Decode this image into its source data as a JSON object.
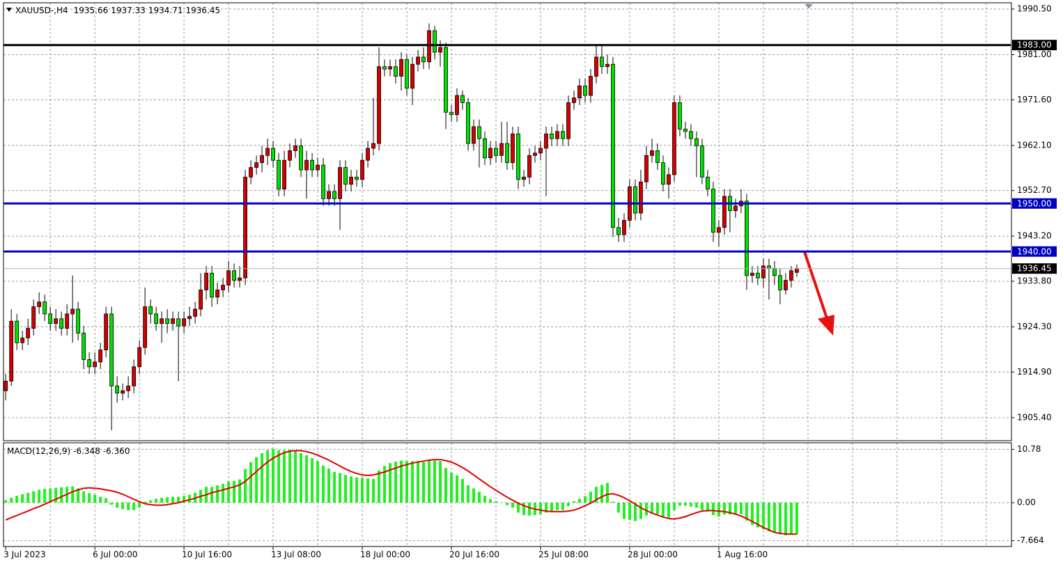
{
  "chart_data": {
    "type": "candlestick",
    "title": "XAUUSD-,H4",
    "open": [
      1911.0,
      1913.0,
      1925.5,
      1921.0,
      1922.0,
      1924.0,
      1928.5,
      1929.5,
      1927.0,
      1925.0,
      1926.0,
      1924.0,
      1927.0,
      1928.0,
      1923.0,
      1917.5,
      1916.0,
      1917.0,
      1919.5,
      1927.0,
      1912.0,
      1910.5,
      1911.0,
      1912.0,
      1916.0,
      1920.0,
      1928.5,
      1927.0,
      1925.0,
      1926.0,
      1925.0,
      1926.0,
      1924.5,
      1926.0,
      1926.5,
      1928.0,
      1932.0,
      1935.5,
      1930.5,
      1932.0,
      1933.0,
      1936.0,
      1934.0,
      1934.5,
      1955.5,
      1957.5,
      1958.5,
      1960.0,
      1961.5,
      1959.0,
      1953.0,
      1959.0,
      1961.0,
      1962.0,
      1957.0,
      1959.0,
      1957.0,
      1958.0,
      1951.0,
      1952.5,
      1951.0,
      1957.5,
      1954.0,
      1955.5,
      1955.0,
      1959.0,
      1961.5,
      1962.5,
      1978.5,
      1978.0,
      1978.5,
      1976.5,
      1980.0,
      1974.0,
      1979.0,
      1980.5,
      1979.5,
      1986.0,
      1981.5,
      1982.5,
      1969.0,
      1968.5,
      1972.5,
      1971.0,
      1962.5,
      1966.0,
      1963.5,
      1959.5,
      1961.5,
      1960.0,
      1962.5,
      1958.5,
      1964.5,
      1955.0,
      1955.5,
      1960.0,
      1960.5,
      1961.5,
      1964.5,
      1963.5,
      1965.0,
      1963.5,
      1971.0,
      1972.0,
      1974.5,
      1972.5,
      1976.5,
      1980.5,
      1978.5,
      1979.0,
      1945.0,
      1943.5,
      1946.5,
      1953.5,
      1948.0,
      1954.5,
      1960.0,
      1961.0,
      1958.5,
      1954.0,
      1956.0,
      1971.0,
      1965.5,
      1965.0,
      1963.5,
      1962.0,
      1955.5,
      1953.0,
      1944.0,
      1945.0,
      1951.5,
      1948.5,
      1949.5,
      1950.5,
      1935.0,
      1935.5,
      1934.5,
      1937.0,
      1936.5,
      1935.0,
      1932.0,
      1934.0,
      1935.66
    ],
    "high": [
      1914.5,
      1928.0,
      1927.0,
      1923.5,
      1926.0,
      1930.0,
      1931.5,
      1931.0,
      1928.5,
      1928.0,
      1927.5,
      1929.0,
      1935.0,
      1929.5,
      1924.5,
      1919.0,
      1919.0,
      1921.0,
      1928.5,
      1928.5,
      1914.0,
      1912.5,
      1914.0,
      1917.5,
      1921.5,
      1932.5,
      1930.0,
      1928.5,
      1927.5,
      1928.0,
      1927.5,
      1927.5,
      1927.5,
      1928.5,
      1929.5,
      1935.5,
      1937.0,
      1937.0,
      1933.5,
      1934.5,
      1938.0,
      1937.5,
      1937.0,
      1957.0,
      1959.0,
      1960.0,
      1962.0,
      1963.5,
      1963.0,
      1960.5,
      1961.0,
      1962.5,
      1963.5,
      1963.5,
      1961.0,
      1960.5,
      1959.5,
      1959.5,
      1954.0,
      1954.0,
      1959.0,
      1959.0,
      1957.0,
      1957.0,
      1960.5,
      1963.0,
      1972.0,
      1982.5,
      1980.0,
      1980.0,
      1980.0,
      1981.5,
      1981.0,
      1980.5,
      1982.0,
      1982.5,
      1987.5,
      1987.0,
      1984.0,
      1983.5,
      1970.5,
      1974.0,
      1973.5,
      1972.0,
      1967.5,
      1967.5,
      1965.0,
      1963.0,
      1963.0,
      1967.0,
      1967.0,
      1966.0,
      1966.0,
      1957.0,
      1961.5,
      1962.0,
      1963.0,
      1966.0,
      1966.0,
      1966.5,
      1966.5,
      1972.5,
      1973.5,
      1976.0,
      1976.0,
      1978.0,
      1983.0,
      1983.0,
      1981.0,
      1980.5,
      1947.0,
      1948.0,
      1955.0,
      1955.0,
      1957.0,
      1962.0,
      1963.5,
      1962.5,
      1960.0,
      1957.5,
      1972.5,
      1972.5,
      1967.0,
      1966.5,
      1965.0,
      1963.5,
      1957.0,
      1954.5,
      1946.5,
      1953.0,
      1953.0,
      1951.0,
      1953.0,
      1952.0,
      1937.0,
      1937.0,
      1938.5,
      1938.5,
      1938.0,
      1936.5,
      1935.5,
      1937.0,
      1937.33
    ],
    "low": [
      1909.0,
      1912.0,
      1919.5,
      1919.5,
      1920.5,
      1922.5,
      1927.0,
      1925.5,
      1923.5,
      1923.5,
      1922.5,
      1922.5,
      1921.0,
      1921.5,
      1915.5,
      1914.5,
      1914.5,
      1915.5,
      1918.0,
      1902.8,
      1908.5,
      1909.0,
      1909.5,
      1910.5,
      1914.5,
      1918.5,
      1925.0,
      1923.5,
      1921.0,
      1923.0,
      1923.5,
      1913.0,
      1923.0,
      1924.5,
      1925.0,
      1926.5,
      1930.0,
      1928.5,
      1929.0,
      1930.5,
      1931.5,
      1932.5,
      1932.5,
      1933.0,
      1954.0,
      1956.0,
      1956.5,
      1958.0,
      1957.5,
      1951.5,
      1951.5,
      1957.5,
      1959.5,
      1955.5,
      1951.0,
      1955.5,
      1955.5,
      1949.5,
      1949.5,
      1949.5,
      1944.5,
      1952.5,
      1952.5,
      1953.5,
      1953.5,
      1957.5,
      1960.0,
      1961.0,
      1976.5,
      1976.5,
      1975.0,
      1973.5,
      1972.5,
      1970.5,
      1977.5,
      1978.0,
      1978.0,
      1980.0,
      1978.5,
      1965.5,
      1967.0,
      1967.0,
      1969.5,
      1961.0,
      1961.0,
      1957.5,
      1958.0,
      1958.0,
      1958.5,
      1958.5,
      1957.0,
      1957.0,
      1953.0,
      1953.5,
      1954.0,
      1958.5,
      1959.0,
      1951.5,
      1962.0,
      1962.0,
      1962.0,
      1962.0,
      1969.5,
      1970.5,
      1971.0,
      1971.0,
      1975.0,
      1977.0,
      1977.0,
      1943.0,
      1942.0,
      1942.0,
      1945.0,
      1946.5,
      1946.5,
      1953.0,
      1958.5,
      1957.0,
      1952.5,
      1951.0,
      1954.5,
      1964.0,
      1963.5,
      1962.0,
      1955.5,
      1954.0,
      1951.5,
      1942.0,
      1941.0,
      1943.5,
      1944.0,
      1947.0,
      1948.0,
      1932.0,
      1933.5,
      1933.0,
      1932.5,
      1930.0,
      1933.0,
      1929.0,
      1931.0,
      1932.5,
      1934.71
    ],
    "close": [
      1913.0,
      1925.5,
      1921.0,
      1922.0,
      1924.0,
      1928.5,
      1929.5,
      1927.0,
      1925.0,
      1926.0,
      1924.0,
      1927.0,
      1928.0,
      1923.0,
      1917.5,
      1916.0,
      1917.0,
      1919.5,
      1927.0,
      1912.0,
      1910.5,
      1911.0,
      1912.0,
      1916.0,
      1920.0,
      1928.5,
      1927.0,
      1925.0,
      1926.0,
      1925.0,
      1926.0,
      1924.5,
      1926.0,
      1926.5,
      1928.0,
      1932.0,
      1935.5,
      1930.5,
      1932.0,
      1933.0,
      1936.0,
      1934.0,
      1934.5,
      1955.5,
      1957.5,
      1958.5,
      1960.0,
      1961.5,
      1959.0,
      1953.0,
      1959.0,
      1961.0,
      1962.0,
      1957.0,
      1959.0,
      1957.0,
      1958.0,
      1951.0,
      1952.5,
      1951.0,
      1957.5,
      1954.0,
      1955.5,
      1955.0,
      1959.0,
      1961.5,
      1962.5,
      1978.5,
      1978.0,
      1978.5,
      1976.5,
      1980.0,
      1974.0,
      1979.0,
      1980.5,
      1979.5,
      1986.0,
      1981.5,
      1982.5,
      1969.0,
      1968.5,
      1972.5,
      1971.0,
      1962.5,
      1966.0,
      1963.5,
      1959.5,
      1961.5,
      1960.0,
      1962.5,
      1958.5,
      1964.5,
      1955.0,
      1955.5,
      1960.0,
      1960.5,
      1961.5,
      1964.5,
      1963.5,
      1965.0,
      1963.5,
      1971.0,
      1972.0,
      1974.5,
      1972.5,
      1976.5,
      1980.5,
      1978.5,
      1979.0,
      1945.0,
      1943.5,
      1946.5,
      1953.5,
      1948.0,
      1954.5,
      1960.0,
      1961.0,
      1958.5,
      1954.0,
      1956.0,
      1971.0,
      1965.5,
      1965.0,
      1963.5,
      1962.0,
      1955.5,
      1953.0,
      1944.0,
      1945.0,
      1951.5,
      1948.5,
      1949.5,
      1950.5,
      1935.0,
      1935.5,
      1934.5,
      1937.0,
      1936.5,
      1935.0,
      1932.0,
      1934.0,
      1936.0,
      1936.45
    ],
    "up_color": "#d40000",
    "down_color": "#00e000",
    "xlim": [
      -0.4,
      180.4
    ],
    "xticks": [
      {
        "value": 0,
        "label": "3 Jul 2023"
      },
      {
        "value": 16,
        "label": "6 Jul 00:00"
      },
      {
        "value": 32,
        "label": "10 Jul 16:00"
      },
      {
        "value": 48,
        "label": "13 Jul 08:00"
      },
      {
        "value": 64,
        "label": "18 Jul 00:00"
      },
      {
        "value": 80,
        "label": "20 Jul 16:00"
      },
      {
        "value": 96,
        "label": "25 Jul 08:00"
      },
      {
        "value": 112,
        "label": "28 Jul 00:00"
      },
      {
        "value": 128,
        "label": "1 Aug 16:00"
      }
    ],
    "xgrid": [
      8,
      16,
      24,
      32,
      40,
      48,
      56,
      64,
      72,
      80,
      88,
      96,
      104,
      112,
      120,
      128,
      136,
      144,
      152,
      160,
      168,
      176
    ],
    "ylim": [
      1900.6,
      1991.8
    ],
    "yticks": [
      {
        "value": 1990.5,
        "label": "1990.50"
      },
      {
        "value": 1981,
        "label": "1981.00"
      },
      {
        "value": 1971.6,
        "label": "1971.60"
      },
      {
        "value": 1962.1,
        "label": "1962.10"
      },
      {
        "value": 1952.7,
        "label": "1952.70"
      },
      {
        "value": 1943.2,
        "label": "1943.20"
      },
      {
        "value": 1933.8,
        "label": "1933.80"
      },
      {
        "value": 1924.3,
        "label": "1924.30"
      },
      {
        "value": 1914.9,
        "label": "1914.90"
      },
      {
        "value": 1905.4,
        "label": "1905.40"
      }
    ],
    "grid": true,
    "levels": [
      {
        "value": 1983,
        "label": "1983.00",
        "color": "#000000"
      },
      {
        "value": 1950,
        "label": "1950.00",
        "color": "#0000c0"
      },
      {
        "value": 1940,
        "label": "1940.00",
        "color": "#0000c0"
      }
    ],
    "macd": {
      "title": "MACD(12,26,9)",
      "readout": [
        "-6.348",
        "-6.360"
      ],
      "histogram": [
        0.5,
        1.0,
        1.4,
        1.7,
        2.0,
        2.3,
        2.6,
        2.8,
        2.9,
        3.0,
        3.1,
        3.2,
        3.3,
        2.9,
        2.3,
        1.9,
        1.6,
        1.2,
        0.9,
        -0.4,
        -1.0,
        -1.3,
        -1.5,
        -1.5,
        -1.0,
        0.2,
        0.5,
        0.8,
        1.0,
        1.1,
        1.2,
        1.2,
        1.4,
        1.6,
        2.0,
        2.6,
        3.2,
        3.2,
        3.5,
        3.8,
        4.3,
        4.4,
        4.7,
        6.8,
        8.2,
        9.2,
        10.0,
        10.6,
        10.9,
        10.6,
        10.6,
        10.7,
        10.5,
        10.0,
        9.6,
        9.0,
        8.4,
        7.5,
        6.9,
        6.2,
        6.0,
        5.6,
        5.3,
        5.1,
        5.0,
        4.9,
        4.8,
        6.5,
        7.4,
        8.0,
        8.3,
        8.5,
        8.4,
        8.4,
        8.4,
        8.2,
        8.6,
        8.5,
        8.4,
        7.0,
        6.1,
        5.5,
        4.8,
        3.5,
        2.9,
        2.2,
        1.4,
        0.7,
        0.3,
        0.0,
        -0.5,
        -1.0,
        -2.0,
        -2.5,
        -2.6,
        -2.5,
        -2.3,
        -2.0,
        -1.8,
        -1.5,
        -1.5,
        -0.7,
        0.3,
        0.8,
        1.3,
        2.2,
        3.2,
        3.6,
        4.0,
        0.2,
        -2.0,
        -3.3,
        -3.5,
        -3.7,
        -3.3,
        -2.6,
        -2.2,
        -2.3,
        -2.8,
        -3.0,
        -1.5,
        -0.6,
        -0.6,
        -0.8,
        -1.0,
        -1.5,
        -1.8,
        -2.5,
        -2.8,
        -2.4,
        -2.4,
        -2.4,
        -2.3,
        -3.6,
        -4.5,
        -5.0,
        -5.4,
        -5.8,
        -6.1,
        -6.4,
        -6.6,
        -6.5,
        -6.348
      ],
      "signal": [
        -3.5,
        -3.0,
        -2.6,
        -2.1,
        -1.7,
        -1.2,
        -0.8,
        -0.3,
        0.2,
        0.7,
        1.2,
        1.7,
        2.2,
        2.6,
        2.9,
        3.0,
        2.9,
        2.8,
        2.6,
        2.4,
        2.1,
        1.7,
        1.2,
        0.7,
        0.2,
        -0.2,
        -0.4,
        -0.5,
        -0.5,
        -0.4,
        -0.2,
        0.0,
        0.3,
        0.6,
        0.9,
        1.3,
        1.6,
        2.0,
        2.3,
        2.6,
        2.9,
        3.2,
        3.6,
        4.3,
        5.3,
        6.3,
        7.3,
        8.2,
        9.0,
        9.6,
        10.1,
        10.4,
        10.5,
        10.5,
        10.3,
        10.0,
        9.6,
        9.1,
        8.6,
        8.0,
        7.4,
        6.8,
        6.3,
        5.9,
        5.6,
        5.5,
        5.6,
        5.9,
        6.2,
        6.6,
        7.0,
        7.4,
        7.7,
        8.0,
        8.2,
        8.4,
        8.6,
        8.7,
        8.7,
        8.5,
        8.2,
        7.7,
        7.1,
        6.4,
        5.6,
        4.8,
        4.0,
        3.2,
        2.5,
        1.8,
        1.1,
        0.5,
        -0.1,
        -0.6,
        -1.0,
        -1.3,
        -1.5,
        -1.7,
        -1.8,
        -1.8,
        -1.8,
        -1.7,
        -1.5,
        -1.1,
        -0.6,
        -0.1,
        0.6,
        1.2,
        1.7,
        1.8,
        1.5,
        1.0,
        0.4,
        -0.3,
        -1.0,
        -1.6,
        -2.1,
        -2.5,
        -2.9,
        -3.2,
        -3.3,
        -3.1,
        -2.8,
        -2.4,
        -2.0,
        -1.7,
        -1.6,
        -1.6,
        -1.7,
        -1.8,
        -2.0,
        -2.3,
        -2.7,
        -3.2,
        -3.8,
        -4.4,
        -5.0,
        -5.5,
        -6.0,
        -6.2,
        -6.3,
        -6.35,
        -6.36
      ],
      "hist_color": "#22ee22",
      "signal_color": "#e00000",
      "ylim": [
        -8.85,
        12.1
      ],
      "yticks": [
        10.78,
        {
          "value": 0,
          "label": "0.00"
        },
        -7.664
      ]
    }
  }
}
